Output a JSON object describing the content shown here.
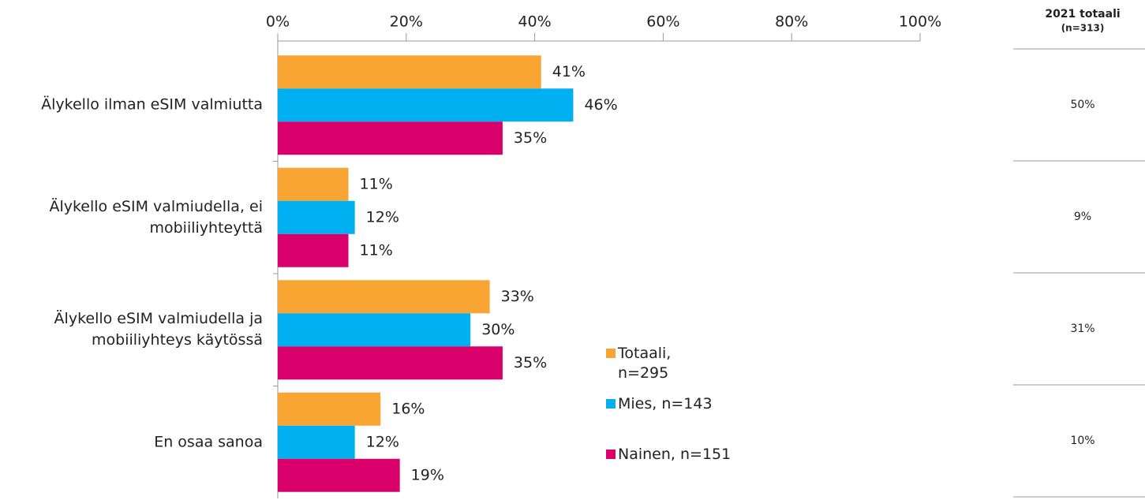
{
  "chart_data": {
    "type": "bar",
    "orientation": "horizontal",
    "categories": [
      "Älykello ilman eSIM valmiutta",
      "Älykello eSIM valmiudella, ei mobiiliyhteyttä",
      "Älykello eSIM valmiudella ja mobiiliyhteys käytössä",
      "En osaa sanoa"
    ],
    "series": [
      {
        "name": "Totaali, n=295",
        "color": "#f9a533",
        "values": [
          41,
          11,
          33,
          16
        ],
        "value_labels": [
          "41%",
          "11%",
          "33%",
          "16%"
        ]
      },
      {
        "name": "Mies, n=143",
        "color": "#00b0f0",
        "values": [
          46,
          12,
          30,
          12
        ],
        "value_labels": [
          "46%",
          "12%",
          "30%",
          "12%"
        ]
      },
      {
        "name": "Nainen, n=151",
        "color": "#d9006c",
        "values": [
          35,
          11,
          35,
          19
        ],
        "value_labels": [
          "35%",
          "11%",
          "35%",
          "19%"
        ]
      }
    ],
    "xlim": [
      0,
      100
    ],
    "xticks": [
      {
        "value": 0,
        "label": "0%"
      },
      {
        "value": 20,
        "label": "20%"
      },
      {
        "value": 40,
        "label": "40%"
      },
      {
        "value": 60,
        "label": "60%"
      },
      {
        "value": 80,
        "label": "80%"
      },
      {
        "value": 100,
        "label": "100%"
      }
    ]
  },
  "table": {
    "title": "2021 totaali",
    "subtitle": "(n=313)",
    "values": [
      "50%",
      "9%",
      "31%",
      "10%"
    ]
  }
}
